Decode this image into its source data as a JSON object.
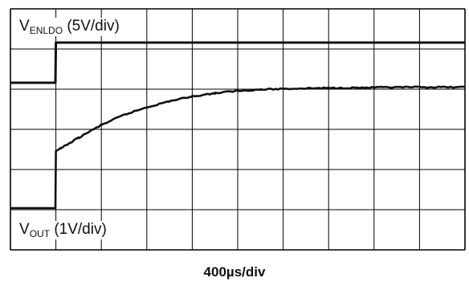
{
  "chart_data": {
    "type": "line",
    "title": "",
    "xlabel": "400µs/div",
    "grid": true,
    "x_divisions": 10,
    "y_divisions": 6,
    "x_unit_per_div": "400µs",
    "series": [
      {
        "name_main": "V",
        "name_sub": "ENLDO",
        "scale": "(5V/div)",
        "scale_v_per_div": 5,
        "offset_div": 3,
        "points": [
          [
            0,
            0
          ],
          [
            0.99,
            0
          ],
          [
            1.0,
            5
          ],
          [
            10.0,
            5
          ]
        ]
      },
      {
        "name_main": "V",
        "name_sub": "OUT",
        "scale": "(1V/div)",
        "scale_v_per_div": 1,
        "offset_div": 0,
        "points": [
          [
            0,
            0
          ],
          [
            0.99,
            0
          ],
          [
            1.0,
            1.42
          ],
          [
            1.1,
            1.48
          ],
          [
            1.5,
            1.75
          ],
          [
            2.0,
            2.07
          ],
          [
            2.5,
            2.32
          ],
          [
            3.0,
            2.51
          ],
          [
            3.5,
            2.66
          ],
          [
            4.0,
            2.78
          ],
          [
            4.5,
            2.86
          ],
          [
            5.0,
            2.92
          ],
          [
            5.5,
            2.95
          ],
          [
            6.0,
            2.97
          ],
          [
            7.0,
            2.99
          ],
          [
            8.0,
            3.0
          ],
          [
            9.0,
            3.01
          ],
          [
            10.0,
            3.01
          ]
        ]
      }
    ]
  },
  "colors": {
    "grid": "#000000",
    "trace": "#111111",
    "background": "#ffffff"
  }
}
